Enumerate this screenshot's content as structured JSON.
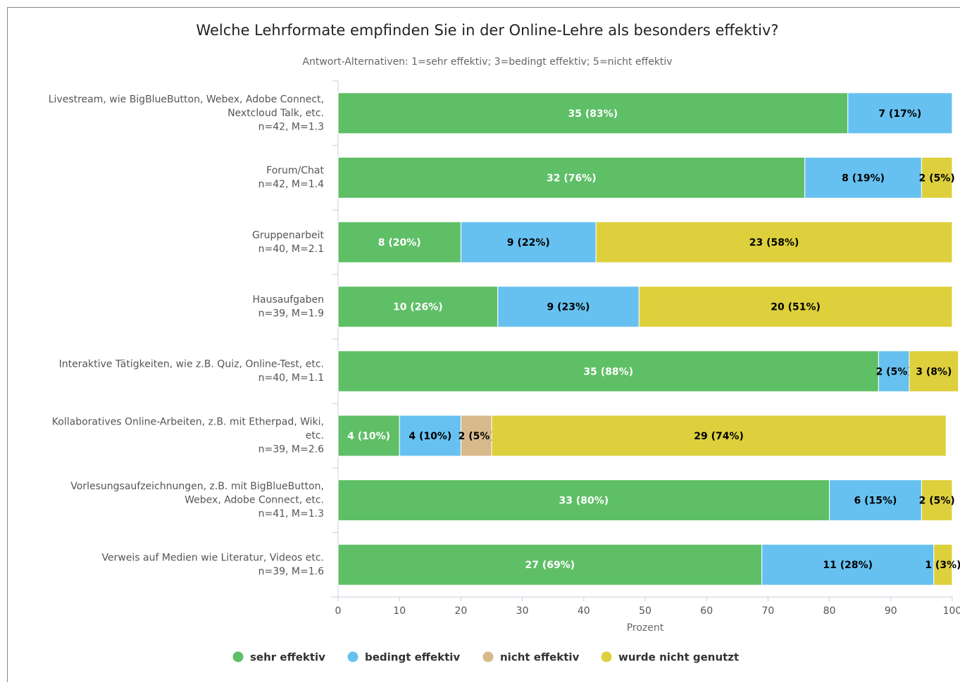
{
  "chart_data": {
    "type": "stacked_bar_horizontal",
    "title": "Welche Lehrformate empfinden Sie in der Online-Lehre als besonders effektiv?",
    "subtitle": "Antwort-Alternativen: 1=sehr effektiv; 3=bedingt effektiv; 5=nicht effektiv",
    "xlabel": "Prozent",
    "categories": [
      [
        "Livestream, wie BigBlueButton, Webex, Adobe Connect,",
        "Nextcloud Talk, etc.",
        "n=42, M=1.3"
      ],
      [
        "Forum/Chat",
        "n=42, M=1.4"
      ],
      [
        "Gruppenarbeit",
        "n=40, M=2.1"
      ],
      [
        "Hausaufgaben",
        "n=39, M=1.9"
      ],
      [
        "Interaktive Tätigkeiten, wie z.B. Quiz, Online-Test, etc.",
        "n=40, M=1.1"
      ],
      [
        "Kollaboratives Online-Arbeiten, z.B. mit Etherpad, Wiki,",
        "etc.",
        "n=39, M=2.6"
      ],
      [
        "Vorlesungsaufzeichnungen, z.B. mit BigBlueButton,",
        "Webex, Adobe Connect, etc.",
        "n=41, M=1.3"
      ],
      [
        "Verweis auf Medien wie Literatur, Videos etc.",
        "n=39, M=1.6"
      ]
    ],
    "series": [
      {
        "name": "sehr effektiv",
        "color": "#5fbf67",
        "values": [
          83,
          76,
          20,
          26,
          88,
          10,
          80,
          69
        ],
        "value_labels": [
          "35 (83%)",
          "32 (76%)",
          "8 (20%)",
          "10 (26%)",
          "35 (88%)",
          "4 (10%)",
          "33 (80%)",
          "27 (69%)"
        ]
      },
      {
        "name": "bedingt effektiv",
        "color": "#67c1f0",
        "values": [
          17,
          19,
          22,
          23,
          5,
          10,
          15,
          28
        ],
        "value_labels": [
          "7 (17%)",
          "8 (19%)",
          "9 (22%)",
          "9 (23%)",
          "2 (5%)",
          "4 (10%)",
          "6 (15%)",
          "11 (28%)"
        ]
      },
      {
        "name": "nicht effektiv",
        "color": "#d7b98b",
        "values": [
          null,
          null,
          null,
          null,
          null,
          5,
          null,
          null
        ],
        "value_labels": [
          null,
          null,
          null,
          null,
          null,
          "2 (5%)",
          null,
          null
        ]
      },
      {
        "name": "wurde nicht genutzt",
        "color": "#ddd03c",
        "values": [
          null,
          5,
          58,
          51,
          8,
          74,
          5,
          3
        ],
        "value_labels": [
          null,
          "2 (5%)",
          "23 (58%)",
          "20 (51%)",
          "3 (8%)",
          "29 (74%)",
          "2 (5%)",
          "1 (3%)"
        ]
      }
    ],
    "xlim": [
      0,
      100
    ],
    "xticks": [
      0,
      10,
      20,
      30,
      40,
      50,
      60,
      70,
      80,
      90,
      100
    ],
    "legend": "bottom"
  }
}
